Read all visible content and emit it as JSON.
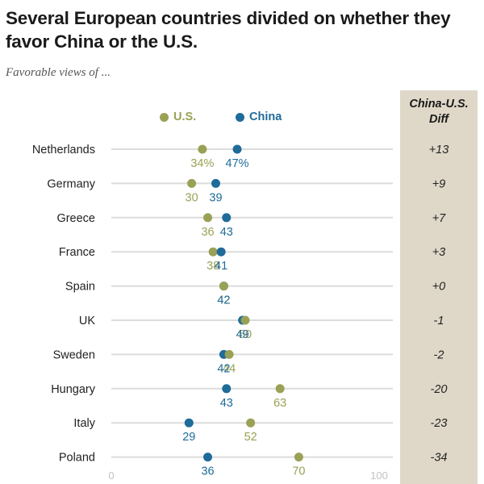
{
  "title": "Several European countries divided on whether they favor China or the U.S.",
  "subtitle": "Favorable views of ...",
  "diff_header": [
    "China-U.S.",
    "Diff"
  ],
  "colors": {
    "us": "#9aa155",
    "china": "#1f6b9a",
    "line": "#dcdcdc",
    "panel": "#dfd8c8",
    "axis_label": "#c2c2c2"
  },
  "legend": [
    {
      "label": "U.S.",
      "color": "#9aa155"
    },
    {
      "label": "China",
      "color": "#1f6b9a"
    }
  ],
  "chart_data": {
    "type": "scatter",
    "categories": [
      "Netherlands",
      "Germany",
      "Greece",
      "France",
      "Spain",
      "UK",
      "Sweden",
      "Hungary",
      "Italy",
      "Poland"
    ],
    "series": [
      {
        "name": "U.S.",
        "values": [
          34,
          30,
          36,
          38,
          42,
          50,
          44,
          63,
          52,
          70
        ],
        "labels": [
          "34%",
          "30",
          "36",
          "38",
          "42",
          "50",
          "44",
          "63",
          "52",
          "70"
        ]
      },
      {
        "name": "China",
        "values": [
          47,
          39,
          43,
          41,
          42,
          49,
          42,
          43,
          29,
          36
        ],
        "labels": [
          "47%",
          "39",
          "43",
          "41",
          "42",
          "49",
          "42",
          "43",
          "29",
          "36"
        ]
      }
    ],
    "diff": [
      "+13",
      "+9",
      "+7",
      "+3",
      "+0",
      "-1",
      "-2",
      "-20",
      "-23",
      "-34"
    ],
    "xlim": [
      0,
      100
    ],
    "xticks": [
      "0",
      "100"
    ],
    "grid": true
  }
}
